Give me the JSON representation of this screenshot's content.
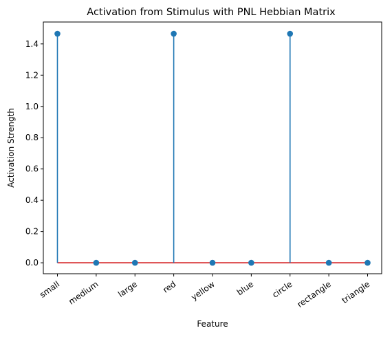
{
  "chart_data": {
    "type": "stem",
    "title": "Activation from Stimulus with PNL Hebbian Matrix",
    "xlabel": "Feature",
    "ylabel": "Activation Strength",
    "categories": [
      "small",
      "medium",
      "large",
      "red",
      "yellow",
      "blue",
      "circle",
      "rectangle",
      "triangle"
    ],
    "values": [
      1.465,
      0.0,
      0.0,
      1.465,
      0.0,
      0.0,
      1.465,
      0.0,
      0.0
    ],
    "ylim": [
      -0.07,
      1.54
    ],
    "yticks": [
      0.0,
      0.2,
      0.4,
      0.6,
      0.8,
      1.0,
      1.2,
      1.4
    ],
    "baseline": 0.0,
    "grid": false,
    "colors": {
      "stem": "#1f77b4",
      "marker": "#1f77b4",
      "baseline": "#d62728"
    }
  }
}
